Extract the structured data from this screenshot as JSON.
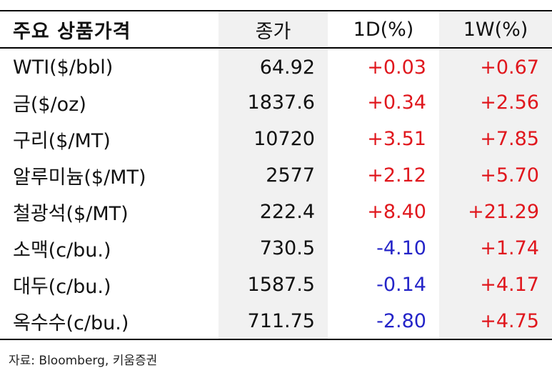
{
  "table": {
    "headers": {
      "name": "주요 상품가격",
      "price": "종가",
      "change_1d": "1D(%)",
      "change_1w": "1W(%)"
    },
    "rows": [
      {
        "name": "WTI($/bbl)",
        "price": "64.92",
        "change_1d": "+0.03",
        "change_1w": "+0.67"
      },
      {
        "name": "금($/oz)",
        "price": "1837.6",
        "change_1d": "+0.34",
        "change_1w": "+2.56"
      },
      {
        "name": "구리($/MT)",
        "price": "10720",
        "change_1d": "+3.51",
        "change_1w": "+7.85"
      },
      {
        "name": "알루미늄($/MT)",
        "price": "2577",
        "change_1d": "+2.12",
        "change_1w": "+5.70"
      },
      {
        "name": "철광석($/MT)",
        "price": "222.4",
        "change_1d": "+8.40",
        "change_1w": "+21.29"
      },
      {
        "name": "소맥(c/bu.)",
        "price": "730.5",
        "change_1d": "-4.10",
        "change_1w": "+1.74"
      },
      {
        "name": "대두(c/bu.)",
        "price": "1587.5",
        "change_1d": "-0.14",
        "change_1w": "+4.17"
      },
      {
        "name": "옥수수(c/bu.)",
        "price": "711.75",
        "change_1d": "-2.80",
        "change_1w": "+4.75"
      }
    ]
  },
  "source": "자료: Bloomberg, 키움증권",
  "colors": {
    "positive": "#e0171d",
    "negative": "#2424c8",
    "shade": "#f1f1f1"
  }
}
